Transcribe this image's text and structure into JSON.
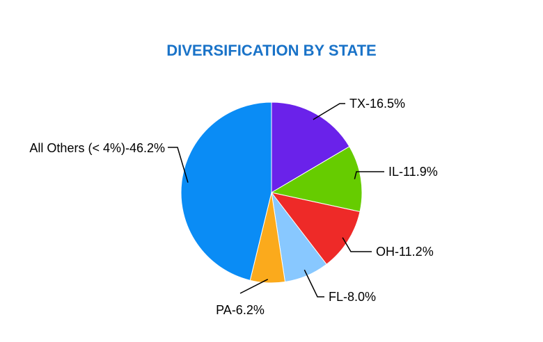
{
  "chart_data": {
    "type": "pie",
    "title": "DIVERSIFICATION BY STATE",
    "slices": [
      {
        "label": "TX",
        "display": "TX-16.5%",
        "value": 16.5,
        "color": "#6a22ea",
        "anchor": "right"
      },
      {
        "label": "IL",
        "display": "IL-11.9%",
        "value": 11.9,
        "color": "#66cc00",
        "anchor": "right"
      },
      {
        "label": "OH",
        "display": "OH-11.2%",
        "value": 11.2,
        "color": "#ee2a28",
        "anchor": "right"
      },
      {
        "label": "FL",
        "display": "FL-8.0%",
        "value": 8.0,
        "color": "#88c8ff",
        "anchor": "right"
      },
      {
        "label": "PA",
        "display": "PA-6.2%",
        "value": 6.2,
        "color": "#fbaa1c",
        "anchor": "below"
      },
      {
        "label": "All Others (< 4%)",
        "display": "All Others (< 4%)-46.2%",
        "value": 46.2,
        "color": "#0a8cf5",
        "anchor": "left"
      }
    ]
  }
}
